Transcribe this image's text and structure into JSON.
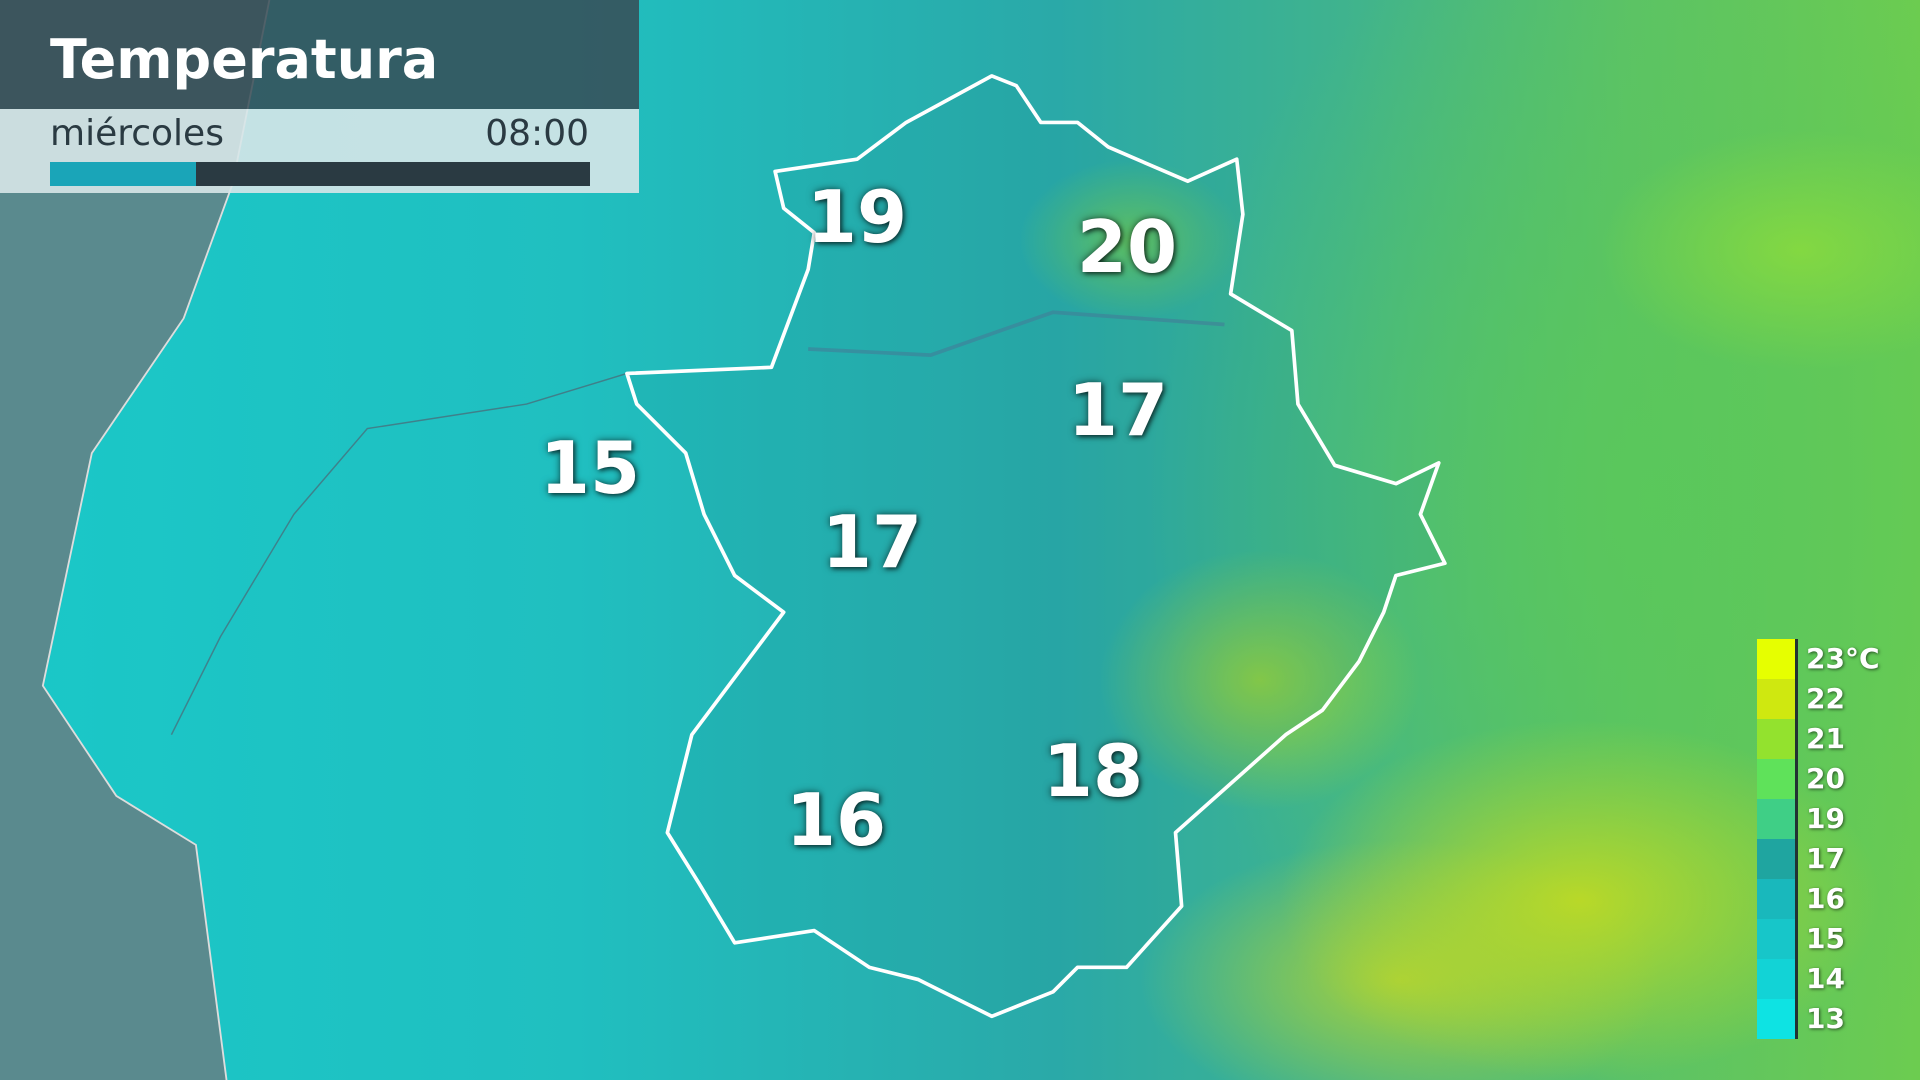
{
  "header": {
    "title": "Temperatura",
    "day": "miércoles",
    "time": "08:00",
    "progress_fraction": 0.27,
    "progress_color": "#1aa5b8"
  },
  "temperatures": [
    {
      "label": "19",
      "zone": "north-west"
    },
    {
      "label": "20",
      "zone": "north-east"
    },
    {
      "label": "17",
      "zone": "east-center"
    },
    {
      "label": "15",
      "zone": "portugal"
    },
    {
      "label": "17",
      "zone": "center"
    },
    {
      "label": "18",
      "zone": "south-east"
    },
    {
      "label": "16",
      "zone": "south-west"
    }
  ],
  "legend": {
    "labels": [
      "23°C",
      "22",
      "21",
      "20",
      "19",
      "17",
      "16",
      "15",
      "14",
      "13"
    ],
    "colors": [
      "#e6ff00",
      "#cfe810",
      "#93e22e",
      "#5fe25a",
      "#3fcf86",
      "#1fa5a0",
      "#19b8bc",
      "#17c6c9",
      "#12d3d6",
      "#0ee3e3"
    ]
  },
  "colors": {
    "sea": "#5a8a8e",
    "border": "#ffffff"
  }
}
